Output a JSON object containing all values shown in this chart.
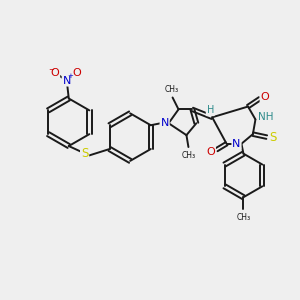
{
  "bg_color": "#efefef",
  "bond_color": "#1a1a1a",
  "atom_colors": {
    "N": "#0000cc",
    "O": "#cc0000",
    "S": "#cccc00",
    "H": "#2e8b8b"
  },
  "lw": 1.4,
  "figsize": [
    3.0,
    3.0
  ],
  "dpi": 100,
  "xlim": [
    0,
    300
  ],
  "ylim": [
    0,
    300
  ]
}
